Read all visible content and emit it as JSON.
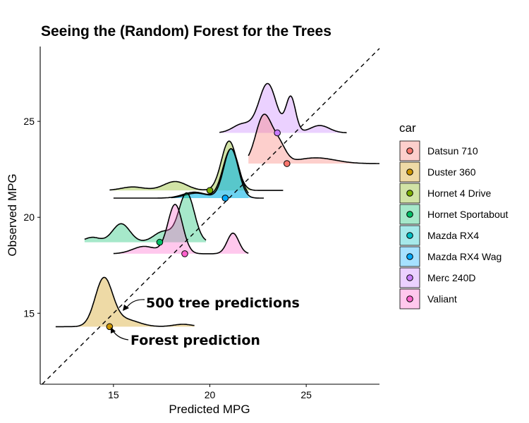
{
  "chart_data": {
    "type": "ridgeline",
    "title": "Seeing the (Random) Forest for the Trees",
    "xlabel": "Predicted MPG",
    "ylabel": "Observed MPG",
    "xlim": [
      11.2,
      28.8
    ],
    "ylim": [
      11.3,
      28.9
    ],
    "xticks": [
      15,
      20,
      25
    ],
    "yticks": [
      15,
      20,
      25
    ],
    "reference_line": "y = x (dashed)",
    "grid": false,
    "legend": {
      "title": "car",
      "position": "right"
    },
    "annotations": [
      {
        "text": "500 tree predictions"
      },
      {
        "text": "Forest prediction"
      }
    ],
    "series": [
      {
        "name": "Datsun 710",
        "color": "#F8766D",
        "observed": 22.8,
        "forest_prediction": 24.0,
        "range": [
          22.0,
          28.8
        ],
        "peaks": [
          [
            22.8,
            1.0,
            0.42
          ],
          [
            23.6,
            0.35,
            0.35
          ],
          [
            25.5,
            0.12,
            1.0
          ]
        ]
      },
      {
        "name": "Duster 360",
        "color": "#CD9600",
        "observed": 14.3,
        "forest_prediction": 14.8,
        "range": [
          12.0,
          19.2
        ],
        "peaks": [
          [
            14.5,
            1.0,
            0.45
          ],
          [
            15.6,
            0.15,
            0.7
          ],
          [
            18.6,
            0.05,
            0.5
          ]
        ]
      },
      {
        "name": "Hornet 4 Drive",
        "color": "#7CAE00",
        "observed": 21.4,
        "forest_prediction": 20.0,
        "range": [
          14.8,
          23.8
        ],
        "peaks": [
          [
            21.0,
            1.0,
            0.4
          ],
          [
            18.2,
            0.18,
            0.6
          ],
          [
            16.0,
            0.07,
            0.6
          ]
        ]
      },
      {
        "name": "Hornet Sportabout",
        "color": "#00BE67",
        "observed": 18.7,
        "forest_prediction": 17.4,
        "range": [
          13.5,
          19.8
        ],
        "peaks": [
          [
            18.8,
            1.0,
            0.4
          ],
          [
            15.4,
            0.38,
            0.45
          ],
          [
            17.6,
            0.22,
            0.5
          ],
          [
            13.9,
            0.1,
            0.4
          ]
        ]
      },
      {
        "name": "Mazda RX4",
        "color": "#00BFC4",
        "observed": 21.0,
        "forest_prediction": 20.8,
        "range": [
          15.0,
          22.0
        ],
        "peaks": [
          [
            21.1,
            1.0,
            0.42
          ],
          [
            19.2,
            0.12,
            0.6
          ]
        ]
      },
      {
        "name": "Mazda RX4 Wag",
        "color": "#00A9FF",
        "observed": 21.0,
        "forest_prediction": 20.8,
        "range": [
          18.0,
          22.8
        ],
        "peaks": [
          [
            21.1,
            1.0,
            0.38
          ],
          [
            19.3,
            0.1,
            0.6
          ]
        ]
      },
      {
        "name": "Merc 240D",
        "color": "#C77CFF",
        "observed": 24.4,
        "forest_prediction": 23.5,
        "range": [
          20.5,
          27.1
        ],
        "peaks": [
          [
            23.0,
            1.0,
            0.45
          ],
          [
            24.2,
            0.72,
            0.25
          ],
          [
            21.7,
            0.18,
            0.5
          ],
          [
            25.7,
            0.15,
            0.5
          ]
        ]
      },
      {
        "name": "Valiant",
        "color": "#FF61CC",
        "observed": 18.1,
        "forest_prediction": 18.7,
        "range": [
          15.0,
          22.0
        ],
        "peaks": [
          [
            18.2,
            1.0,
            0.38
          ],
          [
            21.2,
            0.42,
            0.3
          ],
          [
            16.6,
            0.15,
            0.6
          ]
        ]
      }
    ]
  }
}
